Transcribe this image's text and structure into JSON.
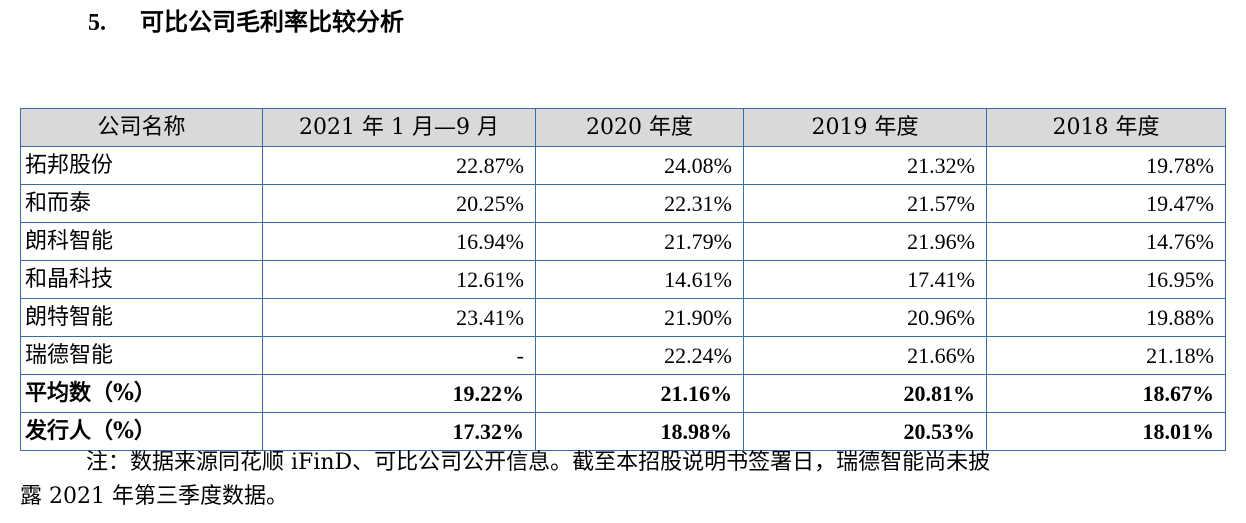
{
  "heading": {
    "number": "5.",
    "title": "可比公司毛利率比较分析"
  },
  "table": {
    "headers": [
      "公司名称",
      "2021 年 1 月—9 月",
      "2020 年度",
      "2019 年度",
      "2018 年度"
    ],
    "rows": [
      [
        "拓邦股份",
        "22.87%",
        "24.08%",
        "21.32%",
        "19.78%"
      ],
      [
        "和而泰",
        "20.25%",
        "22.31%",
        "21.57%",
        "19.47%"
      ],
      [
        "朗科智能",
        "16.94%",
        "21.79%",
        "21.96%",
        "14.76%"
      ],
      [
        "和晶科技",
        "12.61%",
        "14.61%",
        "17.41%",
        "16.95%"
      ],
      [
        "朗特智能",
        "23.41%",
        "21.90%",
        "20.96%",
        "19.88%"
      ],
      [
        "瑞德智能",
        "-",
        "22.24%",
        "21.66%",
        "21.18%"
      ]
    ],
    "bold_rows": [
      [
        "平均数（%）",
        "19.22%",
        "21.16%",
        "20.81%",
        "18.67%"
      ],
      [
        "发行人（%）",
        "17.32%",
        "18.98%",
        "20.53%",
        "18.01%"
      ]
    ]
  },
  "note": {
    "line1": "注：数据来源同花顺 iFinD、可比公司公开信息。截至本招股说明书签署日，瑞德智能尚未披",
    "line2": "露 2021 年第三季度数据。"
  },
  "colors": {
    "border": "#3a6aa8",
    "header_bg": "#d9d9d9"
  }
}
